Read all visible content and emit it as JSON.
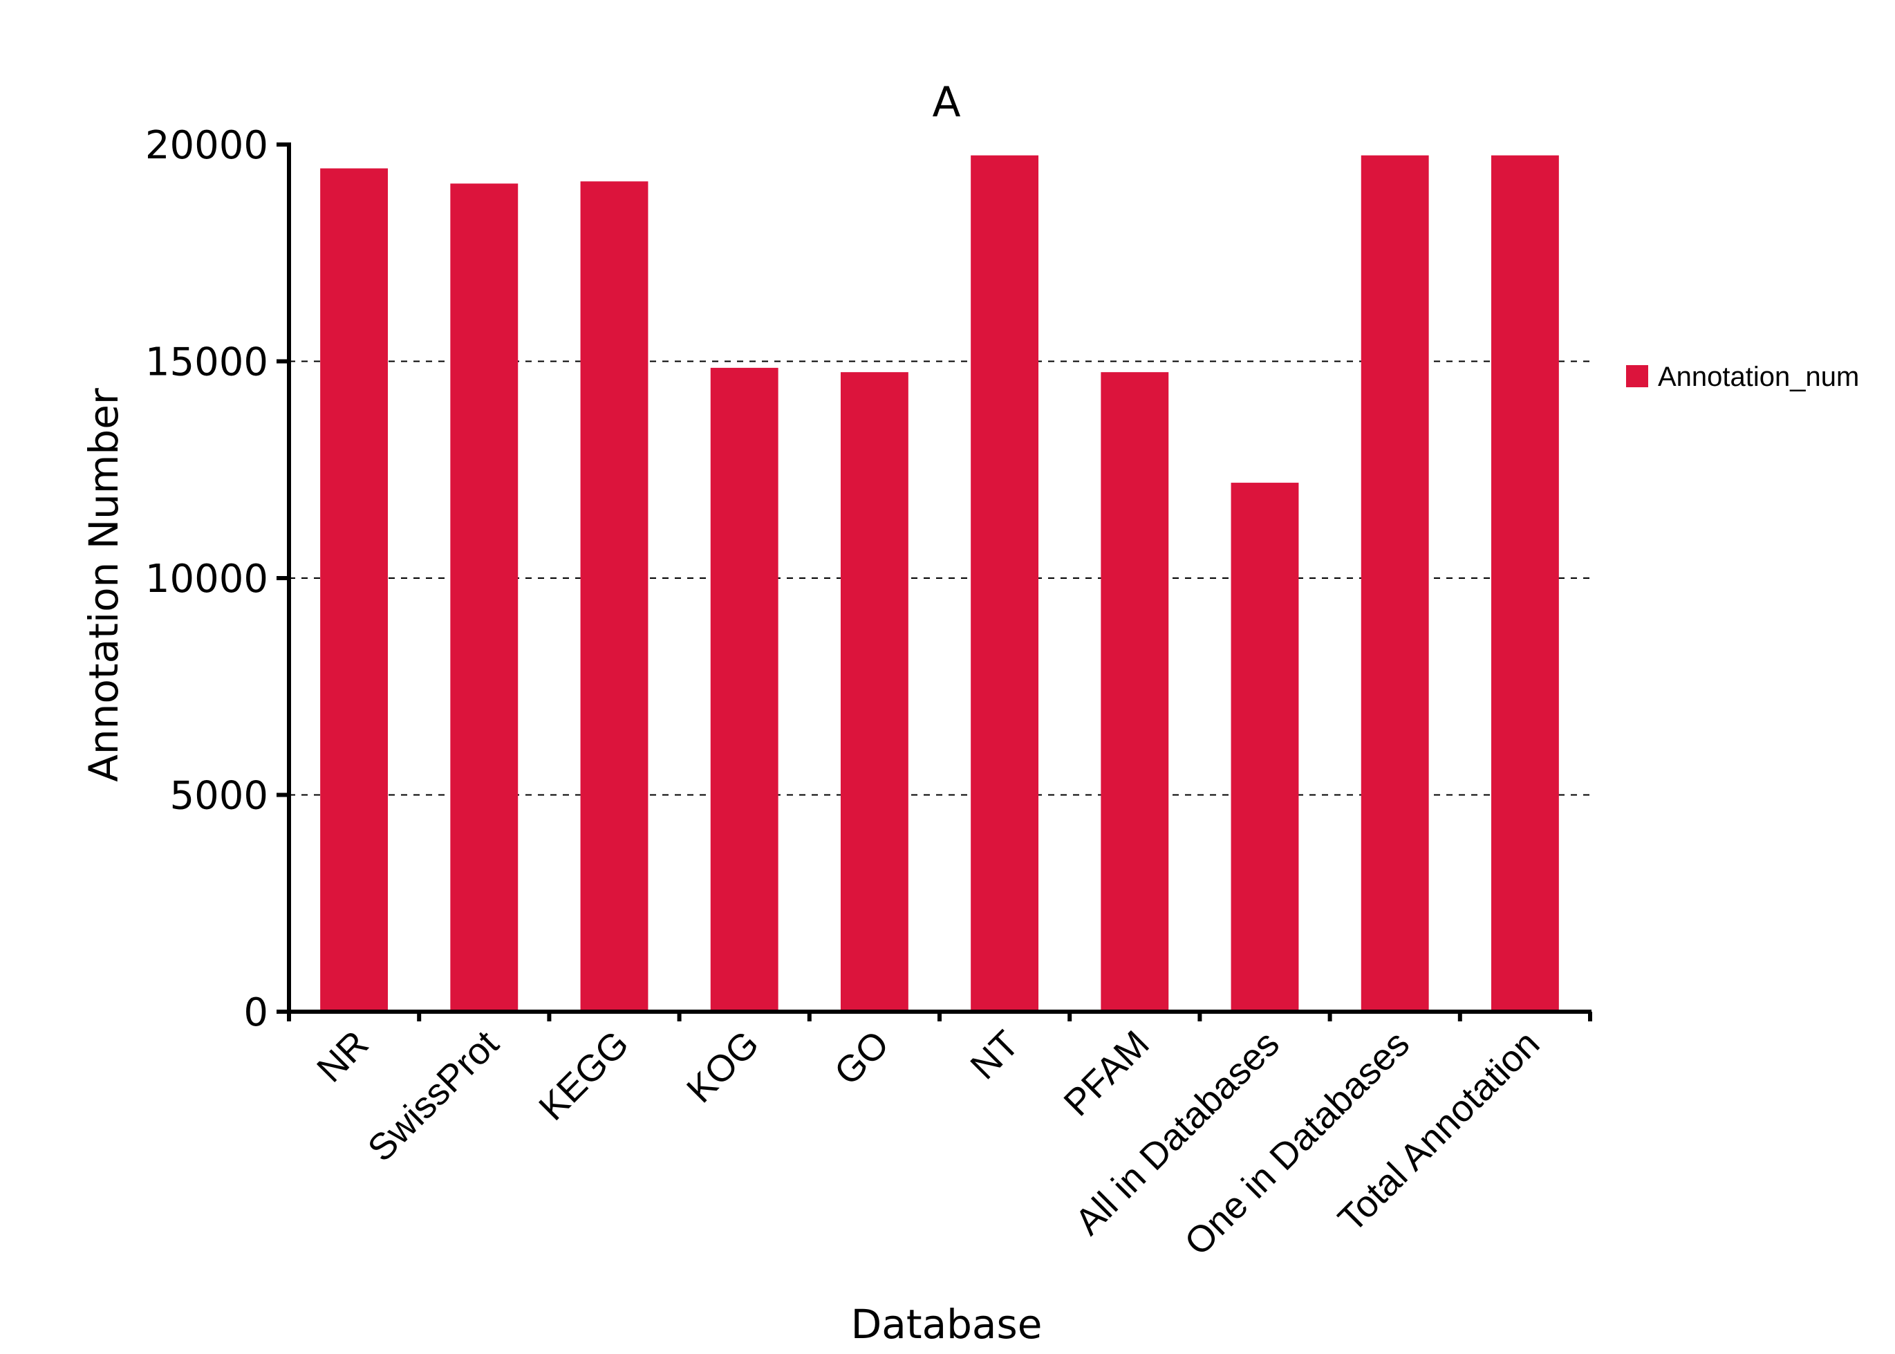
{
  "chart_data": {
    "type": "bar",
    "title": "A",
    "xlabel": "Database",
    "ylabel": "Annotation Number",
    "categories": [
      "NR",
      "SwissProt",
      "KEGG",
      "KOG",
      "GO",
      "NT",
      "PFAM",
      "All in Databases",
      "One in Databases",
      "Total Annotation"
    ],
    "series": [
      {
        "name": "Annotation_num",
        "color": "#dc143c",
        "values": [
          19450,
          19100,
          19150,
          14850,
          14750,
          19750,
          14750,
          12200,
          19750,
          19750
        ]
      }
    ],
    "ylim": [
      0,
      20000
    ],
    "yticks": [
      0,
      5000,
      10000,
      15000,
      20000
    ],
    "grid": "y-dashed",
    "legend": "right"
  }
}
